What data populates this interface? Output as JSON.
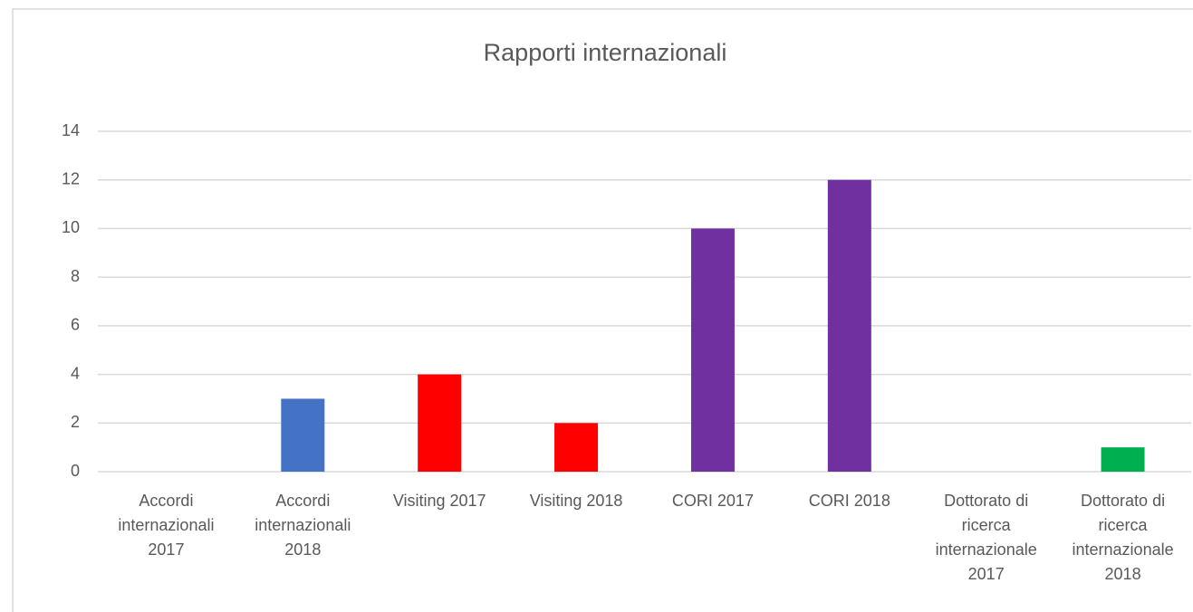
{
  "chart_data": {
    "type": "bar",
    "title": "Rapporti internazionali",
    "categories": [
      "Accordi internazionali 2017",
      "Accordi internazionali 2018",
      "Visiting 2017",
      "Visiting 2018",
      "CORI 2017",
      "CORI 2018",
      "Dottorato di ricerca internazionale 2017",
      "Dottorato di ricerca internazionale 2018"
    ],
    "values": [
      0,
      3,
      4,
      2,
      10,
      12,
      0,
      1
    ],
    "colors": [
      "#4472c4",
      "#4472c4",
      "#ff0000",
      "#ff0000",
      "#7030a0",
      "#7030a0",
      "#00b050",
      "#00b050"
    ],
    "ylim": [
      0,
      14
    ],
    "yticks": [
      0,
      2,
      4,
      6,
      8,
      10,
      12,
      14
    ],
    "grid": true
  }
}
